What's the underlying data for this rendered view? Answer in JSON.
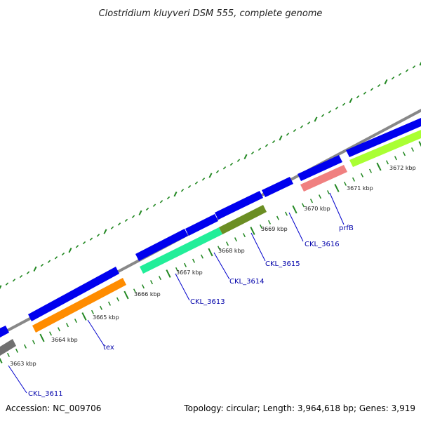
{
  "title": "Clostridium kluyveri DSM 555, complete genome",
  "footer": {
    "accession": "Accession: NC_009706",
    "stats": "Topology: circular; Length: 3,964,618 bp; Genes: 3,919"
  },
  "ticks": [
    {
      "label": "3663 kbp"
    },
    {
      "label": "3664 kbp"
    },
    {
      "label": "3665 kbp"
    },
    {
      "label": "3666 kbp"
    },
    {
      "label": "3667 kbp"
    },
    {
      "label": "3668 kbp"
    },
    {
      "label": "3669 kbp"
    },
    {
      "label": "3670 kbp"
    },
    {
      "label": "3671 kbp"
    },
    {
      "label": "3672 kbp"
    }
  ],
  "gene_labels": [
    {
      "label": "CKL_3611"
    },
    {
      "label": "tex"
    },
    {
      "label": "CKL_3613"
    },
    {
      "label": "CKL_3614"
    },
    {
      "label": "CKL_3615"
    },
    {
      "label": "CKL_3616"
    },
    {
      "label": "prfB"
    }
  ],
  "colors": {
    "backbone": "#888888",
    "cds_blue": "#0000ee",
    "gray": "#707070",
    "orange": "#ff8c00",
    "cyan": "#22ee99",
    "olive": "#6b8e23",
    "pink": "#f08080",
    "lime": "#aaff33",
    "tick_green": "#228822",
    "label_blue": "#0000cc"
  }
}
